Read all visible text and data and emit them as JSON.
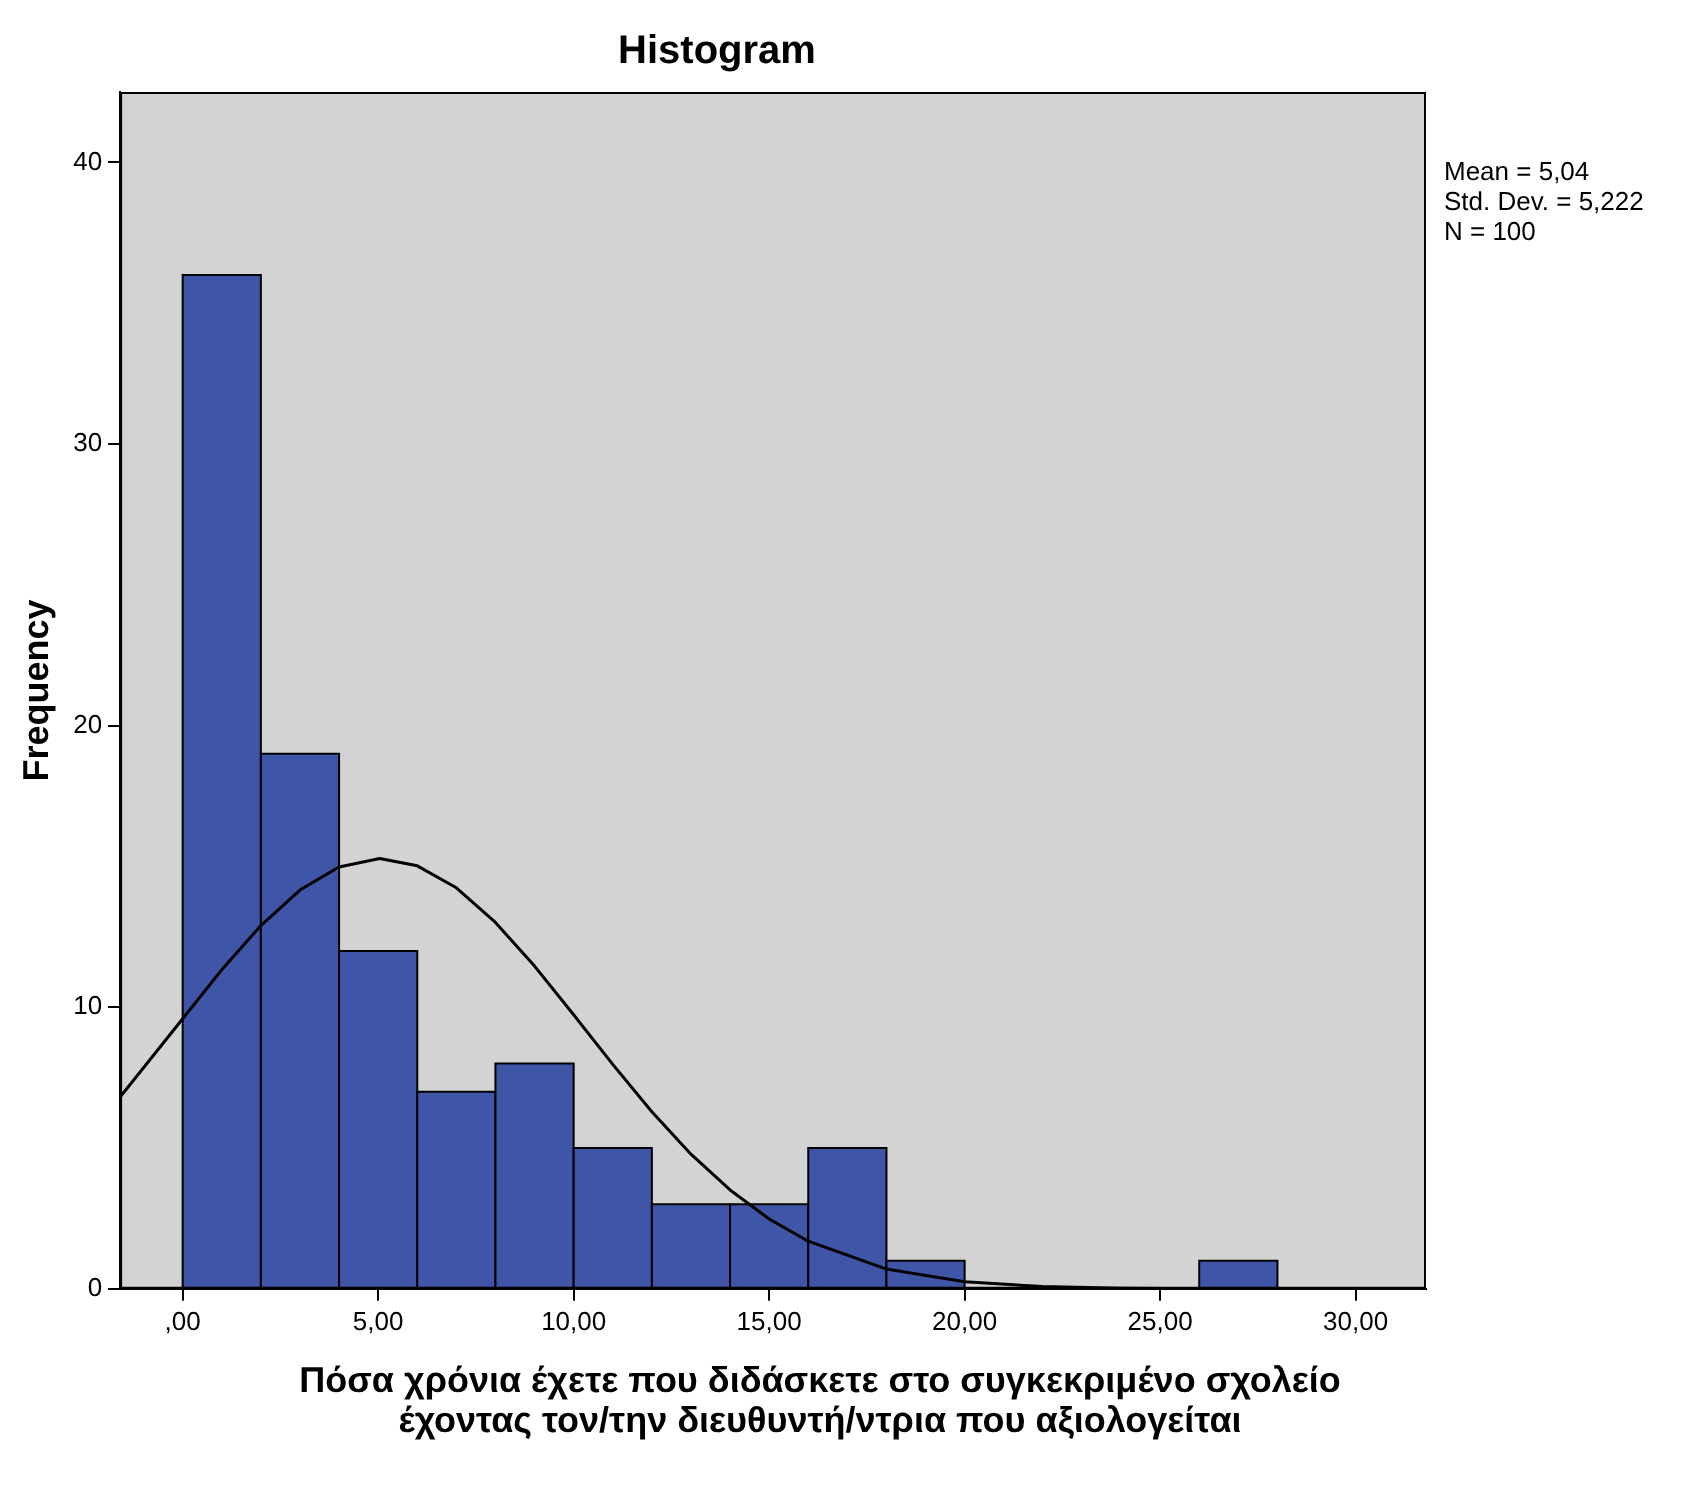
{
  "chart_data": {
    "type": "histogram",
    "title": "Histogram",
    "xlabel": "Πόσα χρόνια έχετε που διδάσκετε στο συγκεκριμένο σχολείο έχοντας τον/την διευθυντή/ντρια που αξιολογείται",
    "ylabel": "Frequency",
    "bins": [
      0,
      2,
      4,
      6,
      8,
      10,
      12,
      14,
      16,
      18,
      20,
      22,
      24,
      26,
      28
    ],
    "values": [
      36,
      19,
      12,
      7,
      8,
      5,
      3,
      3,
      5,
      1,
      0,
      0,
      0,
      1
    ],
    "color": "#3f56a8",
    "xlim": [
      -1.6,
      31.8
    ],
    "xticks": [
      {
        "value": 0,
        "label": ",00"
      },
      {
        "value": 5,
        "label": "5,00"
      },
      {
        "value": 10,
        "label": "10,00"
      },
      {
        "value": 15,
        "label": "15,00"
      },
      {
        "value": 20,
        "label": "20,00"
      },
      {
        "value": 25,
        "label": "25,00"
      },
      {
        "value": 30,
        "label": "30,00"
      }
    ],
    "ylim": [
      0,
      42.5
    ],
    "yticks": [
      0,
      10,
      20,
      30,
      40
    ],
    "grid": false,
    "legend": false,
    "annotations": [
      "Mean = 5,04",
      "Std. Dev. = 5,222",
      "N = 100"
    ],
    "series": [
      {
        "type": "line",
        "color": "#000000",
        "x": [
          -1.6,
          0,
          1,
          2,
          3,
          4,
          5.04,
          6,
          7,
          8,
          9,
          10,
          11,
          12,
          13,
          14,
          15,
          16,
          18,
          20,
          22,
          24,
          26,
          28,
          30,
          31.8
        ],
        "values": [
          6.81,
          9.59,
          11.33,
          12.9,
          14.16,
          14.98,
          15.28,
          15.02,
          14.24,
          13.01,
          11.46,
          9.73,
          7.97,
          6.29,
          4.78,
          3.51,
          2.48,
          1.69,
          0.7,
          0.25,
          0.08,
          0.02,
          0,
          0,
          0,
          0
        ]
      }
    ]
  }
}
